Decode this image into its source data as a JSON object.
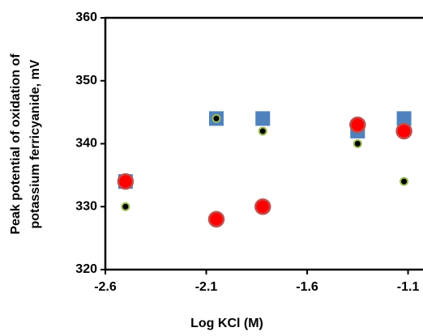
{
  "chart_data": {
    "type": "scatter",
    "xlabel": "Log KCl (M)",
    "ylabel": [
      "Peak potential of oxidation of",
      "potassium ferricyanide, mV"
    ],
    "xlim": [
      -2.6,
      -1.03
    ],
    "xticks": [
      -2.6,
      -2.1,
      -1.6,
      -1.1
    ],
    "ylim": [
      320,
      360
    ],
    "yticks": [
      320,
      330,
      340,
      350,
      360
    ],
    "series": [
      {
        "marker": "square",
        "color": "#4f81bd",
        "x": [
          -2.5,
          -2.05,
          -1.82,
          -1.35,
          -1.12
        ],
        "values": [
          334,
          344,
          344,
          342,
          344
        ]
      },
      {
        "marker": "circle",
        "color": "#ff0000",
        "edge": "#c0504d",
        "x": [
          -2.5,
          -2.05,
          -1.82,
          -1.35,
          -1.12
        ],
        "values": [
          334,
          328,
          330,
          343,
          342
        ]
      },
      {
        "marker": "dot",
        "color": "#000000",
        "edge": "#9bbb59",
        "x": [
          -2.5,
          -2.05,
          -1.82,
          -1.35,
          -1.12
        ],
        "values": [
          330,
          344,
          342,
          340,
          334
        ]
      }
    ]
  }
}
